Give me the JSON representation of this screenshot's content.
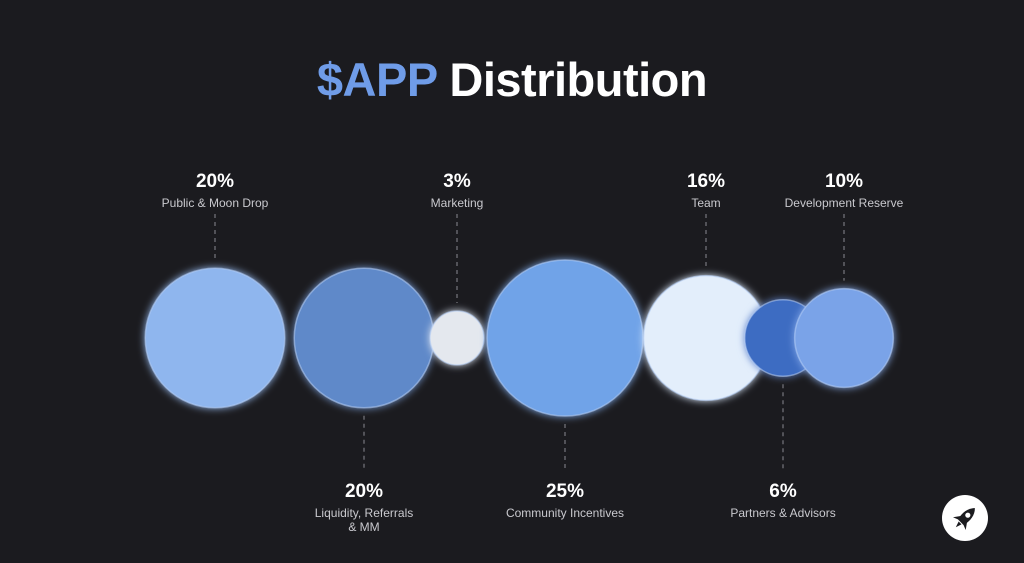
{
  "title": {
    "accent": "$APP",
    "rest": " Distribution"
  },
  "chart_data": {
    "type": "bubble",
    "title": "$APP Distribution",
    "unit": "%",
    "items": [
      {
        "label": "Public & Moon Drop",
        "value": 20,
        "value_label": "20%",
        "color": "#8fb6ee",
        "label_side": "top"
      },
      {
        "label": "Liquidity, Referrals & MM",
        "label_lines": [
          "Liquidity, Referrals",
          "& MM"
        ],
        "value": 20,
        "value_label": "20%",
        "color": "#5f89c9",
        "label_side": "bottom"
      },
      {
        "label": "Marketing",
        "value": 3,
        "value_label": "3%",
        "color": "#e4e8ee",
        "label_side": "top"
      },
      {
        "label": "Community Incentives",
        "value": 25,
        "value_label": "25%",
        "color": "#6fa3e8",
        "label_side": "bottom"
      },
      {
        "label": "Team",
        "value": 16,
        "value_label": "16%",
        "color": "#e3eefb",
        "label_side": "top"
      },
      {
        "label": "Partners & Advisors",
        "value": 6,
        "value_label": "6%",
        "color": "#3e6cc2",
        "label_side": "bottom"
      },
      {
        "label": "Development Reserve",
        "value": 10,
        "value_label": "10%",
        "color": "#7aa3e8",
        "label_side": "top"
      }
    ]
  },
  "icons": {
    "logo": "rocket-icon"
  }
}
